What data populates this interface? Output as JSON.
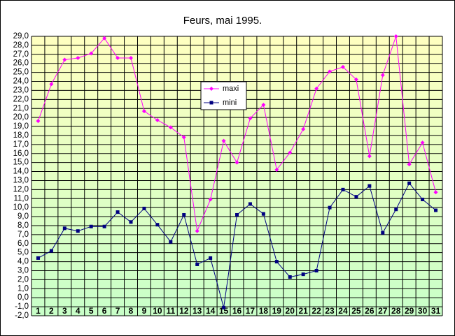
{
  "chart_data": {
    "type": "line",
    "title": "Feurs, mai 1995.",
    "categories": [
      "1",
      "2",
      "3",
      "4",
      "5",
      "6",
      "7",
      "8",
      "9",
      "10",
      "11",
      "12",
      "13",
      "14",
      "15",
      "16",
      "17",
      "18",
      "19",
      "20",
      "21",
      "22",
      "23",
      "24",
      "25",
      "26",
      "27",
      "28",
      "29",
      "30",
      "31"
    ],
    "series": [
      {
        "name": "maxi",
        "color": "#ff00ff",
        "marker": "diamond",
        "values": [
          19.6,
          23.7,
          26.4,
          26.6,
          27.1,
          28.8,
          26.6,
          26.6,
          20.7,
          19.7,
          18.9,
          17.8,
          7.4,
          10.9,
          17.4,
          15.0,
          19.9,
          21.4,
          14.2,
          16.1,
          18.7,
          23.2,
          25.1,
          25.6,
          24.2,
          15.7,
          24.7,
          29.0,
          14.8,
          17.2,
          11.7
        ]
      },
      {
        "name": "mini",
        "color": "#000080",
        "marker": "square",
        "values": [
          4.4,
          5.2,
          7.7,
          7.4,
          7.9,
          7.9,
          9.5,
          8.4,
          9.9,
          8.1,
          6.2,
          9.2,
          3.7,
          4.4,
          -1.1,
          9.2,
          10.4,
          9.3,
          4.0,
          2.3,
          2.6,
          3.0,
          10.0,
          12.0,
          11.2,
          12.4,
          7.2,
          9.8,
          12.7,
          10.9,
          9.7
        ]
      }
    ],
    "ylim": [
      -2,
      29
    ],
    "yticks": [
      {
        "value": -2,
        "label": "-2,0"
      },
      {
        "value": -1,
        "label": "-1,0"
      },
      {
        "value": 0,
        "label": "0,0"
      },
      {
        "value": 1,
        "label": "1,0"
      },
      {
        "value": 2,
        "label": "2,0"
      },
      {
        "value": 3,
        "label": "3,0"
      },
      {
        "value": 4,
        "label": "4,0"
      },
      {
        "value": 5,
        "label": "5,0"
      },
      {
        "value": 6,
        "label": "6,0"
      },
      {
        "value": 7,
        "label": "7,0"
      },
      {
        "value": 8,
        "label": "8,0"
      },
      {
        "value": 9,
        "label": "9,0"
      },
      {
        "value": 10,
        "label": "10,0"
      },
      {
        "value": 11,
        "label": "11,0"
      },
      {
        "value": 12,
        "label": "12,0"
      },
      {
        "value": 13,
        "label": "13,0"
      },
      {
        "value": 14,
        "label": "14,0"
      },
      {
        "value": 15,
        "label": "15,0"
      },
      {
        "value": 16,
        "label": "16,0"
      },
      {
        "value": 17,
        "label": "17,0"
      },
      {
        "value": 18,
        "label": "18,0"
      },
      {
        "value": 19,
        "label": "19,0"
      },
      {
        "value": 20,
        "label": "20,0"
      },
      {
        "value": 21,
        "label": "21,0"
      },
      {
        "value": 22,
        "label": "22,0"
      },
      {
        "value": 23,
        "label": "23,0"
      },
      {
        "value": 24,
        "label": "24,0"
      },
      {
        "value": 25,
        "label": "25,0"
      },
      {
        "value": 26,
        "label": "26,0"
      },
      {
        "value": 27,
        "label": "27,0"
      },
      {
        "value": 28,
        "label": "28,0"
      },
      {
        "value": 29,
        "label": "29,0"
      }
    ],
    "grid": true
  }
}
